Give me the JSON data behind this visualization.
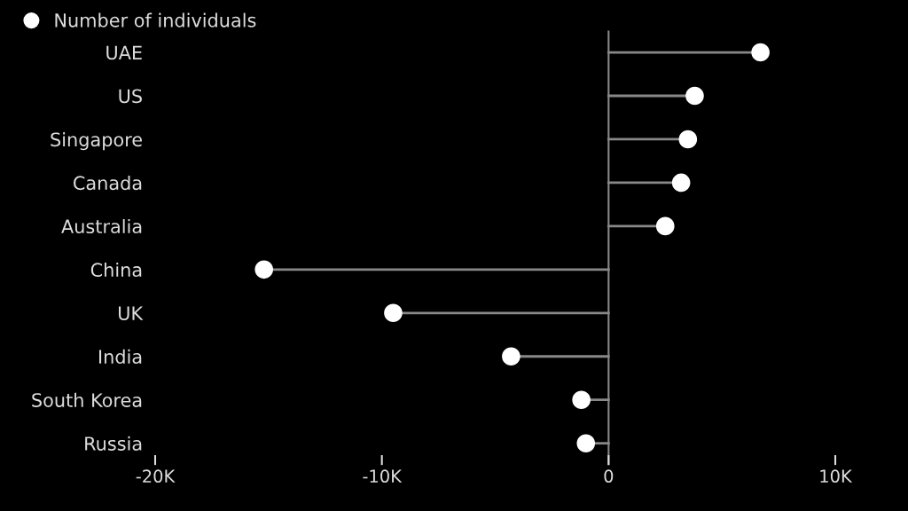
{
  "chart_data": {
    "type": "lollipop",
    "orientation": "horizontal",
    "categories": [
      "UAE",
      "US",
      "Singapore",
      "Canada",
      "Australia",
      "China",
      "UK",
      "India",
      "South Korea",
      "Russia"
    ],
    "series": [
      {
        "name": "Number of individuals",
        "color": "#ffffff",
        "values": [
          6700,
          3800,
          3500,
          3200,
          2500,
          -15200,
          -9500,
          -4300,
          -1200,
          -1000
        ]
      }
    ],
    "xlim": [
      -20000,
      10000
    ],
    "ref_lines": [
      {
        "axis": "x",
        "value": 0,
        "color": "#888888"
      }
    ],
    "xticks": [
      {
        "value": -20000,
        "label": "-20K"
      },
      {
        "value": -10000,
        "label": "-10K"
      },
      0,
      {
        "value": 10000,
        "label": "10K"
      }
    ],
    "grid": false,
    "legend": "top left",
    "marker": "circle"
  }
}
